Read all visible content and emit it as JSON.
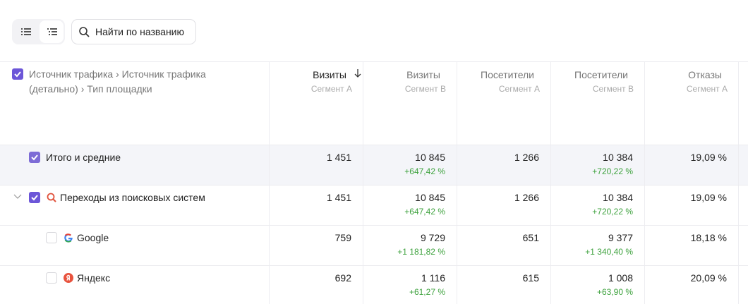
{
  "toolbar": {
    "search_placeholder": "Найти по названию"
  },
  "table": {
    "dimensions_header": "Источник трафика › Источник трафика (детально) › Тип площадки",
    "columns": [
      {
        "title": "Визиты",
        "segment": "Сегмент А"
      },
      {
        "title": "Визиты",
        "segment": "Сегмент B"
      },
      {
        "title": "Посетители",
        "segment": "Сегмент А"
      },
      {
        "title": "Посетители",
        "segment": "Сегмент B"
      },
      {
        "title": "Отказы",
        "segment": "Сегмент А"
      }
    ],
    "rows": [
      {
        "label": "Итого и средние",
        "cells": [
          {
            "value": "1 451"
          },
          {
            "value": "10 845",
            "change": "+647,42 %"
          },
          {
            "value": "1 266"
          },
          {
            "value": "10 384",
            "change": "+720,22 %"
          },
          {
            "value": "19,09 %"
          }
        ]
      },
      {
        "label": "Переходы из поисковых систем",
        "cells": [
          {
            "value": "1 451"
          },
          {
            "value": "10 845",
            "change": "+647,42 %"
          },
          {
            "value": "1 266"
          },
          {
            "value": "10 384",
            "change": "+720,22 %"
          },
          {
            "value": "19,09 %"
          }
        ]
      },
      {
        "label": "Google",
        "cells": [
          {
            "value": "759"
          },
          {
            "value": "9 729",
            "change": "+1 181,82 %"
          },
          {
            "value": "651"
          },
          {
            "value": "9 377",
            "change": "+1 340,40 %"
          },
          {
            "value": "18,18 %"
          }
        ]
      },
      {
        "label": "Яндекс",
        "cells": [
          {
            "value": "692"
          },
          {
            "value": "1 116",
            "change": "+61,27 %"
          },
          {
            "value": "615"
          },
          {
            "value": "1 008",
            "change": "+63,90 %"
          },
          {
            "value": "20,09 %"
          }
        ]
      }
    ]
  }
}
